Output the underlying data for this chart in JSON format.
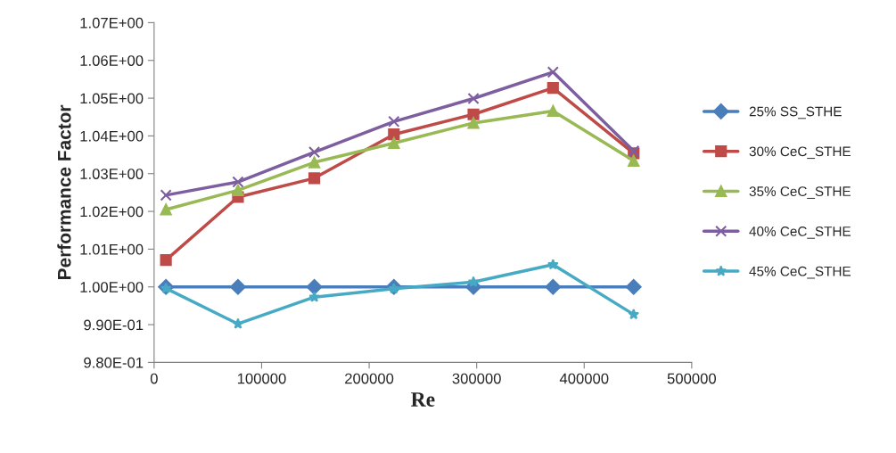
{
  "chart_data": {
    "type": "line",
    "xlabel": "Re",
    "ylabel": "Performance Factor",
    "x": [
      11000,
      78000,
      149000,
      223000,
      297000,
      371000,
      446000
    ],
    "series": [
      {
        "name": "25% SS_STHE",
        "color": "#4a7ebb",
        "marker": "diamond",
        "values": [
          1.0,
          1.0,
          1.0,
          1.0,
          1.0,
          1.0,
          1.0
        ]
      },
      {
        "name": "30% CeC_STHE",
        "color": "#be4b48",
        "marker": "square",
        "values": [
          1.0071,
          1.0238,
          1.0288,
          1.0404,
          1.0457,
          1.0527,
          1.0354
        ]
      },
      {
        "name": "35% CeC_STHE",
        "color": "#98b954",
        "marker": "triangle",
        "values": [
          1.0205,
          1.0256,
          1.033,
          1.0381,
          1.0434,
          1.0466,
          1.0334
        ]
      },
      {
        "name": "40% CeC_STHE",
        "color": "#7d5fa0",
        "marker": "cross",
        "values": [
          1.0243,
          1.0278,
          1.0357,
          1.0438,
          1.0499,
          1.0569,
          1.036
        ]
      },
      {
        "name": "45% CeC_STHE",
        "color": "#46aac5",
        "marker": "star",
        "values": [
          0.9996,
          0.9902,
          0.9973,
          0.9995,
          1.0013,
          1.0059,
          0.9927
        ]
      }
    ],
    "xlim": [
      0,
      500000
    ],
    "xticks": [
      0,
      100000,
      200000,
      300000,
      400000,
      500000
    ],
    "ylim": [
      0.98,
      1.07
    ],
    "yticks": [
      {
        "value": 0.98,
        "label": "9.80E-01"
      },
      {
        "value": 0.99,
        "label": "9.90E-01"
      },
      {
        "value": 1.0,
        "label": "1.00E+00"
      },
      {
        "value": 1.01,
        "label": "1.01E+00"
      },
      {
        "value": 1.02,
        "label": "1.02E+00"
      },
      {
        "value": 1.03,
        "label": "1.03E+00"
      },
      {
        "value": 1.04,
        "label": "1.04E+00"
      },
      {
        "value": 1.05,
        "label": "1.05E+00"
      },
      {
        "value": 1.06,
        "label": "1.06E+00"
      },
      {
        "value": 1.07,
        "label": "1.07E+00"
      }
    ],
    "grid": false,
    "legend": "right",
    "line_style": "solid"
  }
}
